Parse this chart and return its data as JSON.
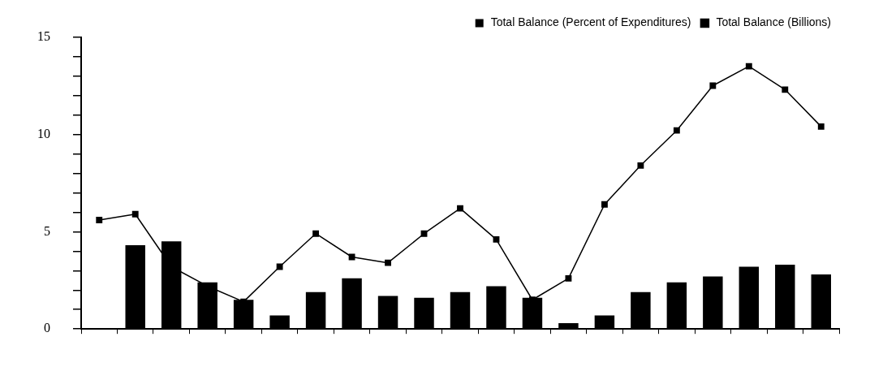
{
  "chart_data": {
    "type": "bar",
    "categories": [
      null,
      null,
      null,
      null,
      null,
      null,
      null,
      null,
      null,
      null,
      null,
      null,
      null,
      null,
      null,
      null,
      null,
      null,
      null,
      null,
      null
    ],
    "series": [
      {
        "name": "Total Balance (Percent of Expenditures)",
        "color": "#000000",
        "values": [
          null,
          4.3,
          4.5,
          2.4,
          1.5,
          0.7,
          1.9,
          2.6,
          1.7,
          1.6,
          1.9,
          2.2,
          1.6,
          0.3,
          0.7,
          1.9,
          2.4,
          2.7,
          3.2,
          3.3,
          2.8
        ]
      },
      {
        "name": "Total Balance (Billions)",
        "type": "line",
        "color": "#000000",
        "marker": "square",
        "values": [
          5.6,
          5.9,
          3.2,
          2.2,
          1.4,
          3.2,
          4.9,
          3.7,
          3.4,
          4.9,
          6.2,
          4.6,
          1.5,
          2.6,
          6.4,
          8.4,
          10.2,
          12.5,
          13.5,
          12.3,
          10.4
        ]
      }
    ],
    "ylim": [
      0,
      15
    ],
    "yticks": [
      0,
      {
        "value": 1,
        "label": null
      },
      {
        "value": 2,
        "label": null
      },
      {
        "value": 3,
        "label": null
      },
      {
        "value": 4,
        "label": null
      },
      5,
      {
        "value": 6,
        "label": null
      },
      {
        "value": 7,
        "label": null
      },
      {
        "value": 8,
        "label": null
      },
      {
        "value": 9,
        "label": null
      },
      10,
      {
        "value": 11,
        "label": null
      },
      {
        "value": 12,
        "label": null
      },
      {
        "value": 13,
        "label": null
      },
      {
        "value": 14,
        "label": null
      },
      15
    ],
    "grid": false,
    "legend": "top right"
  }
}
